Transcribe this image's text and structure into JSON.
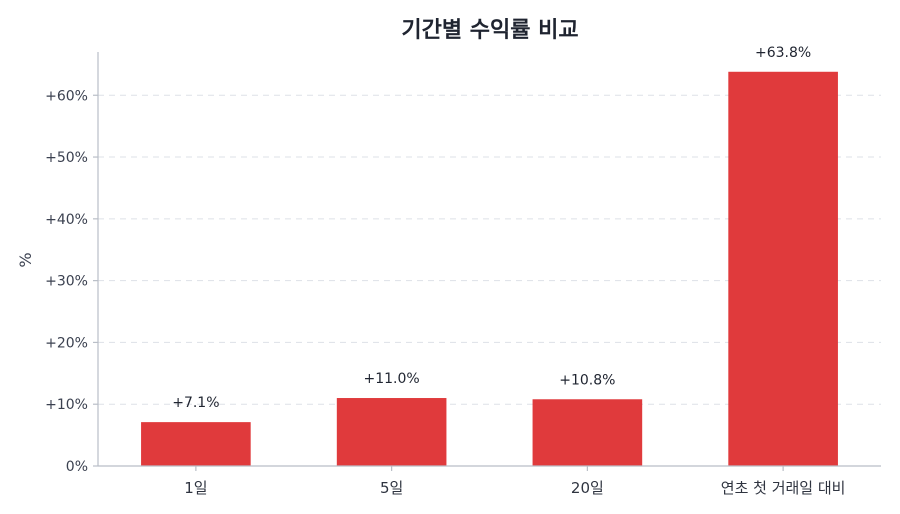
{
  "chart_data": {
    "type": "bar",
    "title": "기간별 수익률 비교",
    "ylabel": "%",
    "xlabel": "",
    "categories": [
      "1일",
      "5일",
      "20일",
      "연초 첫 거래일 대비"
    ],
    "values": [
      7.1,
      11.0,
      10.8,
      63.8
    ],
    "data_labels": [
      "+7.1%",
      "+11.0%",
      "+10.8%",
      "+63.8%"
    ],
    "ylim": [
      0,
      67
    ],
    "yticks": [
      0,
      10,
      20,
      30,
      40,
      50,
      60
    ],
    "ytick_labels": [
      "0%",
      "+10%",
      "+20%",
      "+30%",
      "+40%",
      "+50%",
      "+60%"
    ],
    "grid": true,
    "bar_color": "#e03a3c"
  }
}
